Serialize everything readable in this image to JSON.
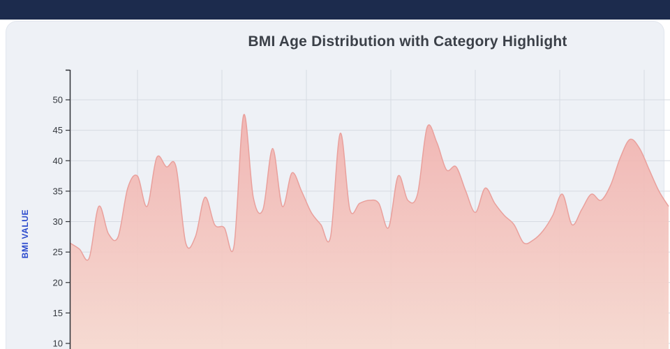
{
  "page": {
    "topbar_color": "#1c2b4d",
    "background": "#ffffff"
  },
  "card": {
    "background": "#eef1f6",
    "border_color": "#e2e6ee"
  },
  "chart_data": {
    "type": "area",
    "title": "BMI Age Distribution with Category Highlight",
    "xlabel": "",
    "ylabel": "BMI VALUE",
    "ylim": [
      9,
      55
    ],
    "yticks": [
      50,
      45,
      40,
      35,
      30,
      25,
      20,
      15,
      10
    ],
    "grid": true,
    "legend_position": "none",
    "x_axis_labels_visible": false,
    "series": [
      {
        "name": "BMI",
        "values": [
          26.5,
          25.5,
          24,
          32.5,
          28,
          27.5,
          35.5,
          37.5,
          32.5,
          40.5,
          39,
          39,
          26.5,
          27.5,
          34,
          29.5,
          29,
          26,
          47.5,
          34,
          32,
          42,
          32.5,
          38,
          35,
          31.5,
          29.5,
          27.5,
          44.5,
          32,
          33,
          33.5,
          33,
          29,
          37.5,
          33.5,
          34.5,
          45.5,
          43,
          38.5,
          39,
          35,
          31.5,
          35.5,
          33,
          31,
          29.5,
          26.5,
          27,
          28.5,
          31,
          34.5,
          29.5,
          32,
          34.5,
          33.5,
          36,
          40.5,
          43.5,
          42,
          38.5,
          35,
          32.5
        ]
      }
    ],
    "colors": {
      "area_top": "#f1b0ad",
      "area_bottom": "#f6d9d0",
      "area_stroke": "#e9a09c",
      "grid": "#d7dbe2",
      "axis": "#2e3136",
      "tick_label": "#34383e",
      "title": "#3b4048",
      "ylabel": "#2948cc"
    }
  }
}
